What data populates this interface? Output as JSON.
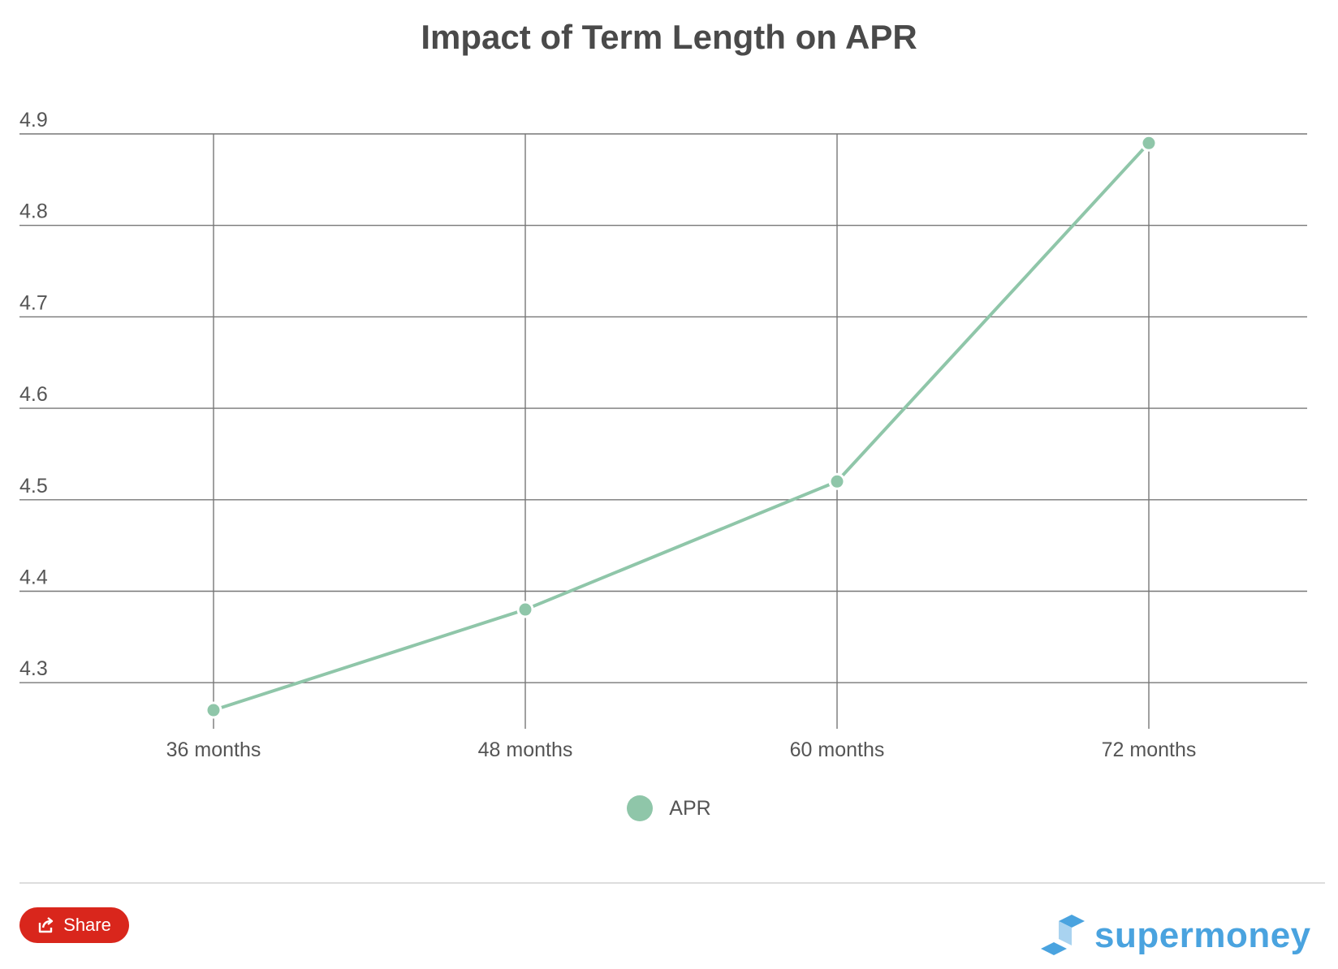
{
  "title": "Impact of Term Length on APR",
  "colors": {
    "series": "#8fc6a9",
    "grid": "#777777",
    "text": "#555555",
    "share": "#d9261c",
    "brand": "#4aa3df",
    "brand_light": "#a9d3f0"
  },
  "chart_data": {
    "type": "line",
    "categories": [
      "36 months",
      "48 months",
      "60 months",
      "72 months"
    ],
    "series": [
      {
        "name": "APR",
        "values": [
          4.27,
          4.38,
          4.52,
          4.89
        ]
      }
    ],
    "ylim": [
      4.24,
      4.9
    ],
    "yticks": [
      "4.3",
      "4.4",
      "4.5",
      "4.6",
      "4.7",
      "4.8",
      "4.9"
    ],
    "grid": true,
    "legend": "bottom-center",
    "xlabel": "",
    "ylabel": ""
  },
  "legend": {
    "label": "APR"
  },
  "footer": {
    "share_label": "Share",
    "logo_text": "supermoney"
  }
}
